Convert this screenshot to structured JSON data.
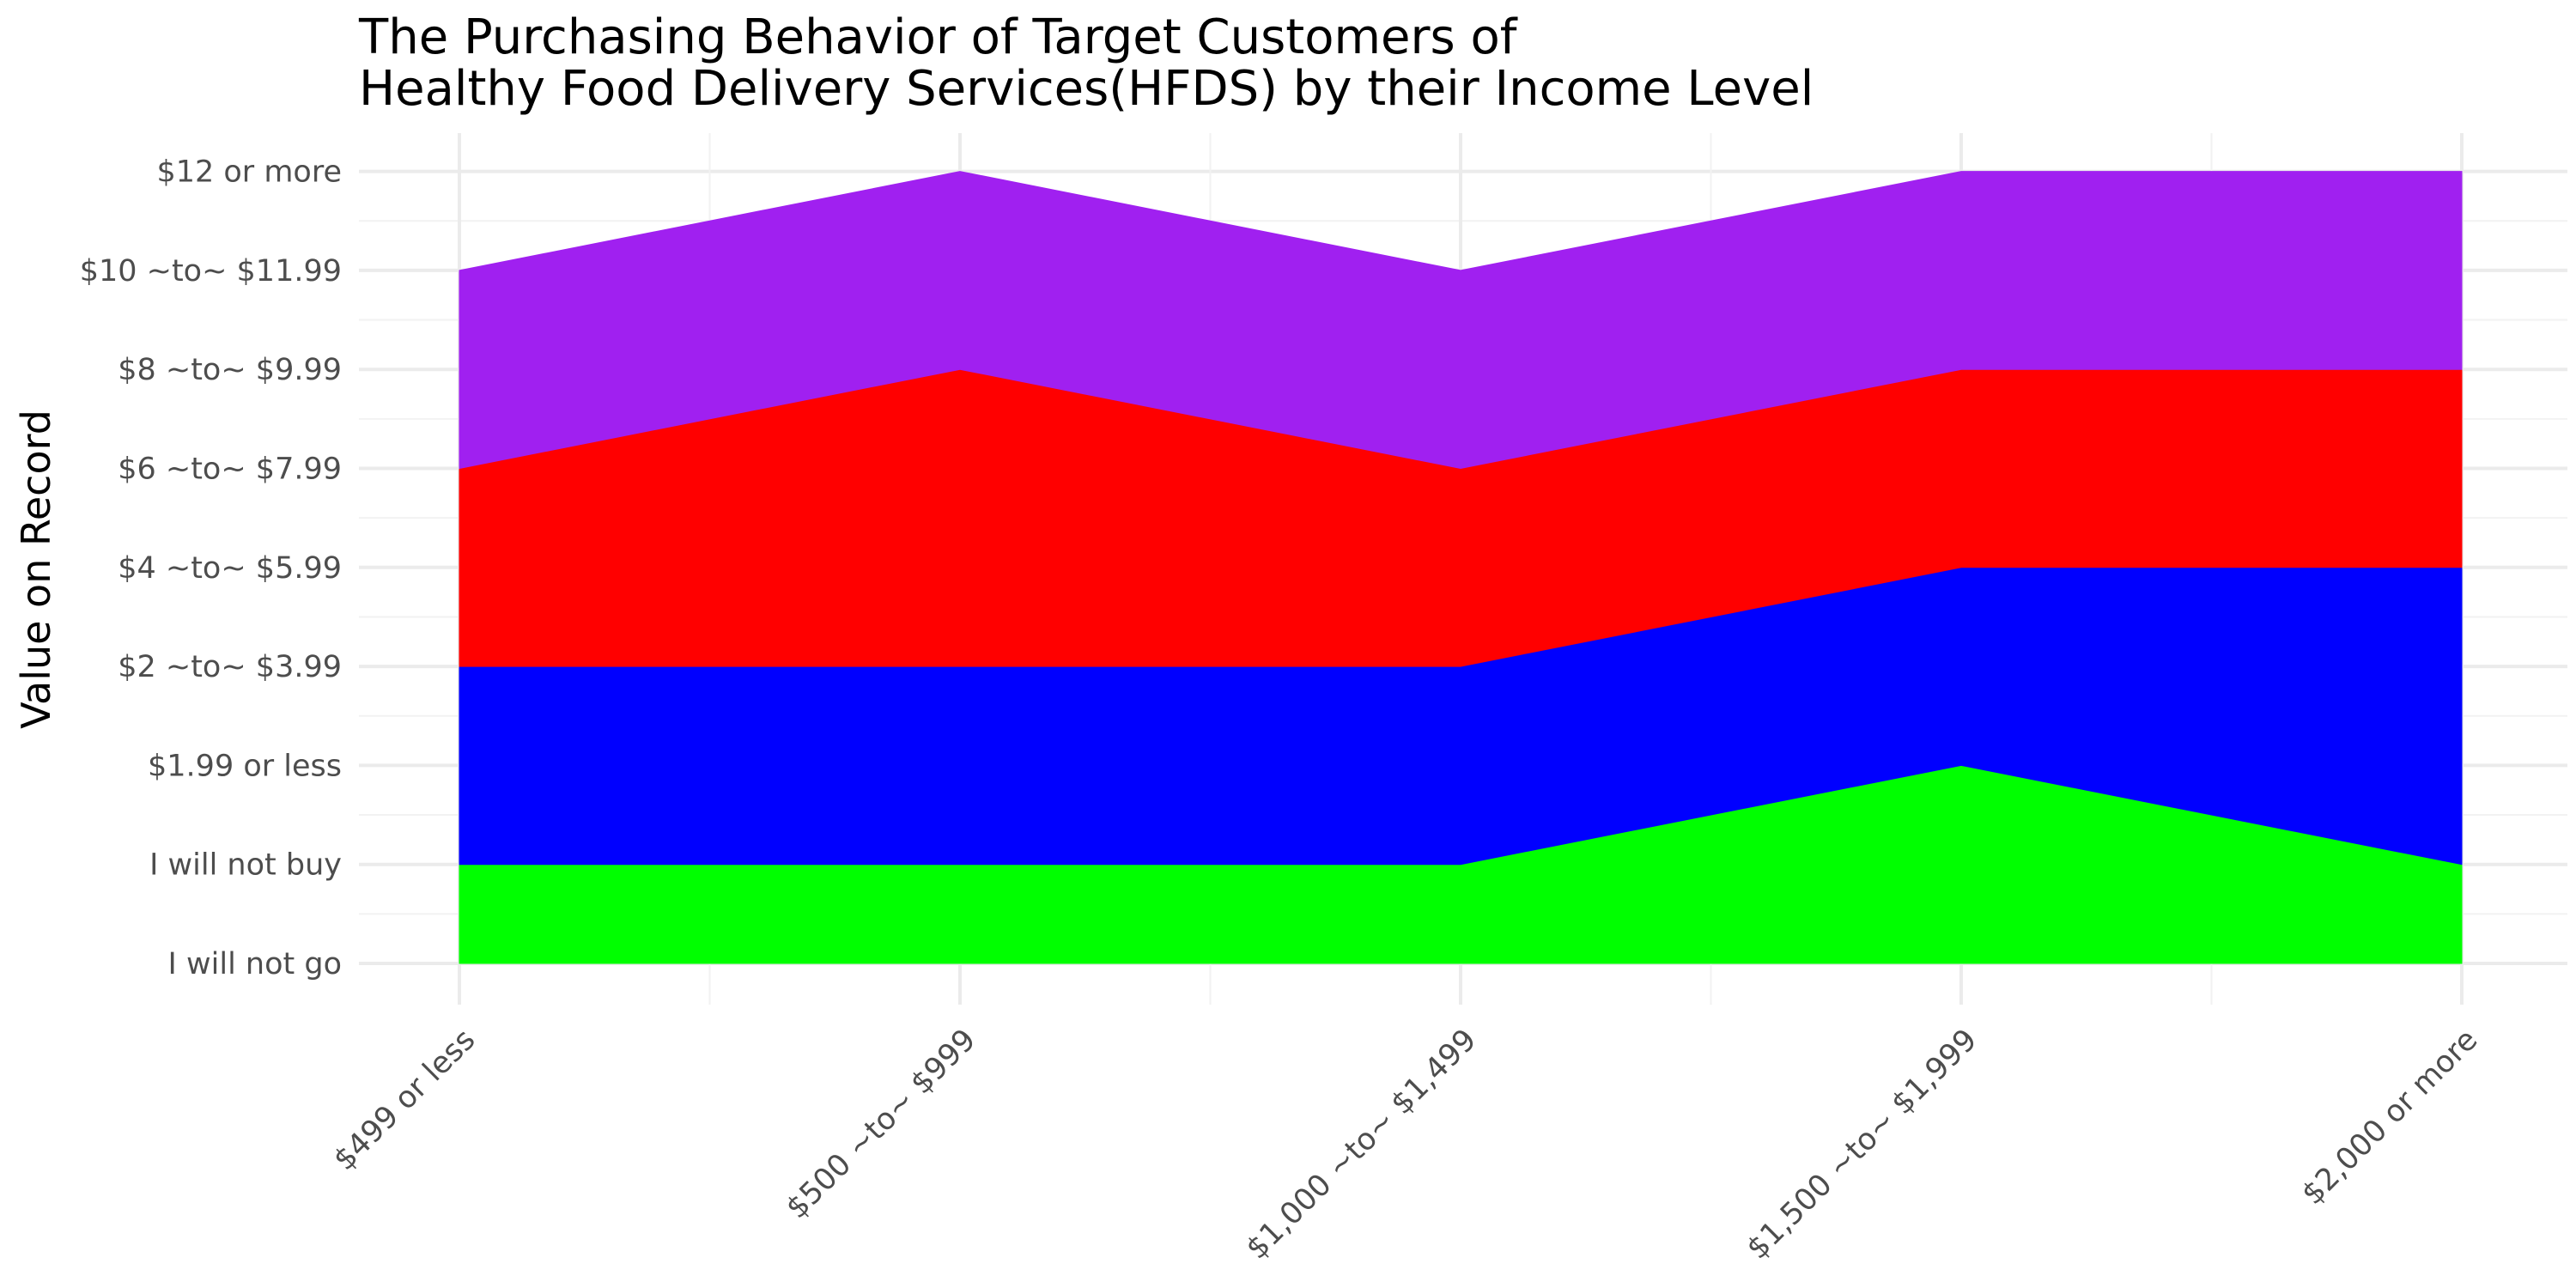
{
  "chart_data": {
    "type": "area",
    "stacked": true,
    "title": [
      "The Purchasing Behavior of Target Customers of",
      "Healthy Food Delivery Services(HFDS) by their Income Level"
    ],
    "xlabel": "",
    "ylabel": "Value on Record",
    "categories": [
      "$499 or less",
      "$500 ~to~ $999",
      "$1,000 ~to~ $1,499",
      "$1,500 ~to~ $1,999",
      "$2,000 or more"
    ],
    "y_tick_labels": [
      "I will not go",
      "I will not buy",
      "$1.99 or less",
      "$2 ~to~ $3.99",
      "$4 ~to~ $5.99",
      "$6 ~to~ $7.99",
      "$8 ~to~ $9.99",
      "$10 ~to~ $11.99",
      "$12 or more"
    ],
    "ylim": [
      0,
      8
    ],
    "series": [
      {
        "values": [
          1,
          1,
          1,
          2,
          1
        ],
        "color": "#00ff00"
      },
      {
        "values": [
          2,
          2,
          2,
          2,
          3
        ],
        "color": "#0000ff"
      },
      {
        "values": [
          2,
          3,
          2,
          2,
          2
        ],
        "color": "#ff0000"
      },
      {
        "values": [
          2,
          2,
          2,
          2,
          2
        ],
        "color": "#a020f0"
      }
    ],
    "grid": true,
    "legend": "none"
  }
}
